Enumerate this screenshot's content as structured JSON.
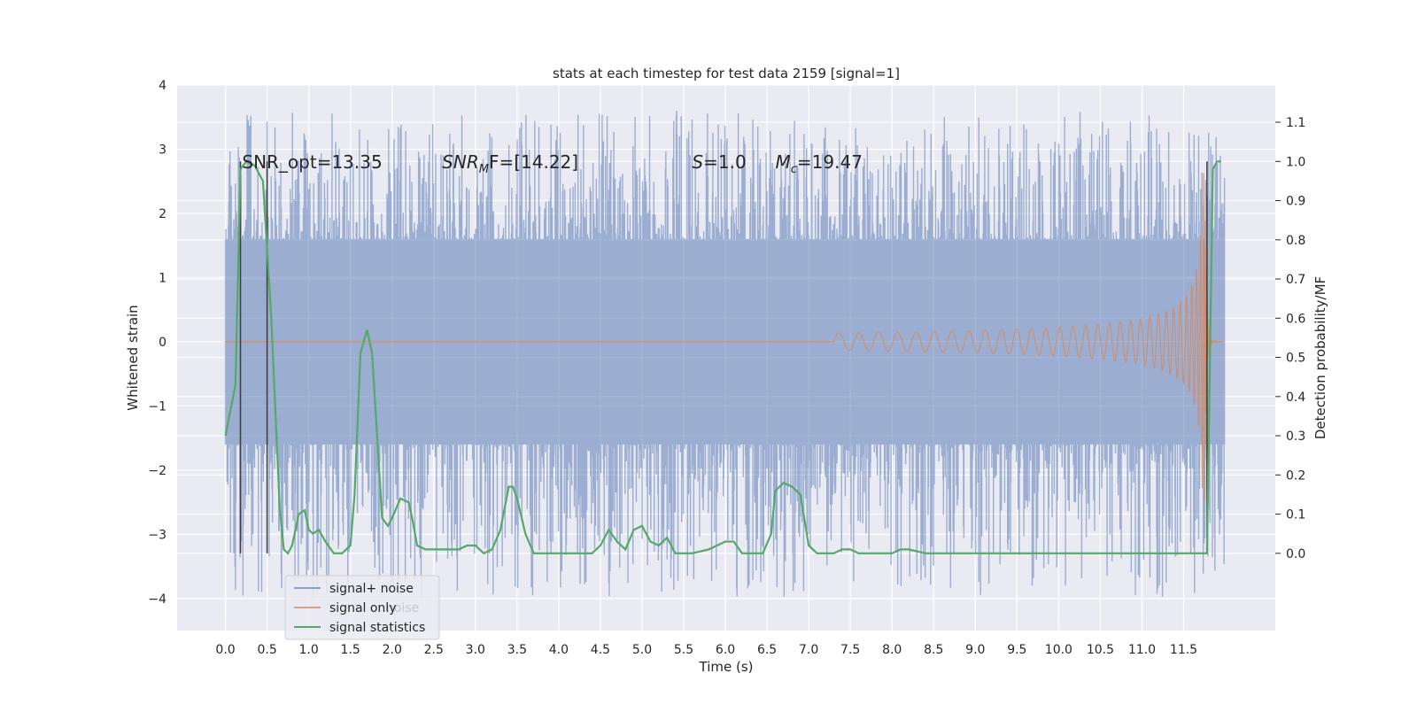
{
  "chart_data": {
    "type": "line",
    "title": "stats at each timestep for test data 2159 [signal=1]",
    "xlabel": "Time (s)",
    "ylabel": "Whitened strain",
    "y2label": "Detection probability/MF",
    "xlim": [
      -0.58,
      12.6
    ],
    "ylim": [
      -4.5,
      4.0
    ],
    "y2lim": [
      -0.197,
      1.195
    ],
    "x_ticks": [
      0.0,
      0.5,
      1.0,
      1.5,
      2.0,
      2.5,
      3.0,
      3.5,
      4.0,
      4.5,
      5.0,
      5.5,
      6.0,
      6.5,
      7.0,
      7.5,
      8.0,
      8.5,
      9.0,
      9.5,
      10.0,
      10.5,
      11.0,
      11.5
    ],
    "x_tick_labels": [
      "0.0",
      "0.5",
      "1.0",
      "1.5",
      "2.0",
      "2.5",
      "3.0",
      "3.5",
      "4.0",
      "4.5",
      "5.0",
      "5.5",
      "6.0",
      "6.5",
      "7.0",
      "7.5",
      "8.0",
      "8.5",
      "9.0",
      "9.5",
      "10.0",
      "10.5",
      "11.0",
      "11.5"
    ],
    "y_ticks": [
      4,
      3,
      2,
      1,
      0,
      -1,
      -2,
      -3,
      -4
    ],
    "y_tick_labels": [
      "4",
      "3",
      "2",
      "1",
      "0",
      "−1",
      "−2",
      "−3",
      "−4"
    ],
    "y2_ticks": [
      1.1,
      1.0,
      0.9,
      0.8,
      0.7,
      0.6,
      0.5,
      0.4,
      0.3,
      0.2,
      0.1,
      0.0
    ],
    "y2_tick_labels": [
      "1.1",
      "1.0",
      "0.9",
      "0.8",
      "0.7",
      "0.6",
      "0.5",
      "0.4",
      "0.3",
      "0.2",
      "0.1",
      "0.0"
    ],
    "grid": true,
    "legend_position": "lower-left",
    "colors": {
      "background": "#eaeaf2",
      "grid": "#ffffff",
      "noise": "#4c72b0",
      "signal": "#dd8452",
      "statistics": "#55a868",
      "vline": "#404040"
    },
    "series": [
      {
        "name": "signal+ noise",
        "axis": "left",
        "description_range": [
          0.0,
          11.99
        ],
        "envelope": {
          "core": 1.6,
          "peak_max": 3.6,
          "peak_min": -4.0
        }
      },
      {
        "name": "signal only",
        "axis": "left",
        "chirp": {
          "start": 7.3,
          "merger": 11.75,
          "peak_amplitude": 2.8,
          "end": 11.99
        }
      },
      {
        "name": "signal statistics",
        "axis": "right",
        "x": [
          0.0,
          0.12,
          0.18,
          0.25,
          0.35,
          0.45,
          0.55,
          0.65,
          0.7,
          0.75,
          0.8,
          0.88,
          0.95,
          1.0,
          1.05,
          1.12,
          1.2,
          1.3,
          1.4,
          1.5,
          1.55,
          1.62,
          1.7,
          1.76,
          1.82,
          1.88,
          1.95,
          2.0,
          2.1,
          2.2,
          2.25,
          2.3,
          2.4,
          2.5,
          2.6,
          2.7,
          2.8,
          2.9,
          3.0,
          3.1,
          3.2,
          3.3,
          3.4,
          3.45,
          3.5,
          3.6,
          3.7,
          3.8,
          4.0,
          4.2,
          4.4,
          4.5,
          4.6,
          4.7,
          4.8,
          4.9,
          5.0,
          5.1,
          5.2,
          5.3,
          5.4,
          5.5,
          5.6,
          5.8,
          6.0,
          6.1,
          6.2,
          6.3,
          6.45,
          6.55,
          6.6,
          6.7,
          6.8,
          6.9,
          7.0,
          7.1,
          7.2,
          7.3,
          7.4,
          7.5,
          7.6,
          7.8,
          8.0,
          8.1,
          8.2,
          8.4,
          8.6,
          8.8,
          9.0,
          9.5,
          10.0,
          10.5,
          11.0,
          11.5,
          11.65,
          11.7,
          11.75,
          11.78,
          11.85,
          11.9,
          11.95
        ],
        "y": [
          0.3,
          0.43,
          0.98,
          1.0,
          0.99,
          0.95,
          0.6,
          0.12,
          0.01,
          0.0,
          0.02,
          0.1,
          0.11,
          0.06,
          0.05,
          0.06,
          0.03,
          0.0,
          0.0,
          0.02,
          0.15,
          0.51,
          0.57,
          0.51,
          0.3,
          0.09,
          0.07,
          0.09,
          0.14,
          0.13,
          0.08,
          0.02,
          0.01,
          0.01,
          0.01,
          0.01,
          0.01,
          0.02,
          0.02,
          0.0,
          0.01,
          0.06,
          0.17,
          0.17,
          0.14,
          0.05,
          0.0,
          0.0,
          0.0,
          0.0,
          0.0,
          0.02,
          0.06,
          0.03,
          0.01,
          0.06,
          0.07,
          0.03,
          0.02,
          0.04,
          0.0,
          0.0,
          0.0,
          0.01,
          0.03,
          0.03,
          0.0,
          0.0,
          0.0,
          0.05,
          0.16,
          0.18,
          0.17,
          0.15,
          0.02,
          0.0,
          0.0,
          0.0,
          0.01,
          0.01,
          0.0,
          0.0,
          0.0,
          0.01,
          0.01,
          0.0,
          0.0,
          0.0,
          0.0,
          0.0,
          0.0,
          0.0,
          0.0,
          0.0,
          0.0,
          0.0,
          0.0,
          0.0,
          0.98,
          1.0,
          1.0
        ]
      }
    ],
    "vlines": [
      0.18,
      0.5,
      11.78
    ],
    "annotations": [
      {
        "id": "snr-opt",
        "text": "SNR_opt=13.35",
        "x": 0.2
      },
      {
        "id": "snr-mf",
        "prefix": "SNR",
        "sub": "M",
        "suffix": "F=[14.22]",
        "x": 2.6
      },
      {
        "id": "s-val",
        "prefix": "S",
        "suffix": "=1.0",
        "x": 5.6
      },
      {
        "id": "mc-val",
        "prefix": "M",
        "sub": "c",
        "suffix": "=19.47",
        "x": 6.6
      }
    ],
    "annotation_y": 2.8,
    "legend_ghost_text": "noise"
  }
}
